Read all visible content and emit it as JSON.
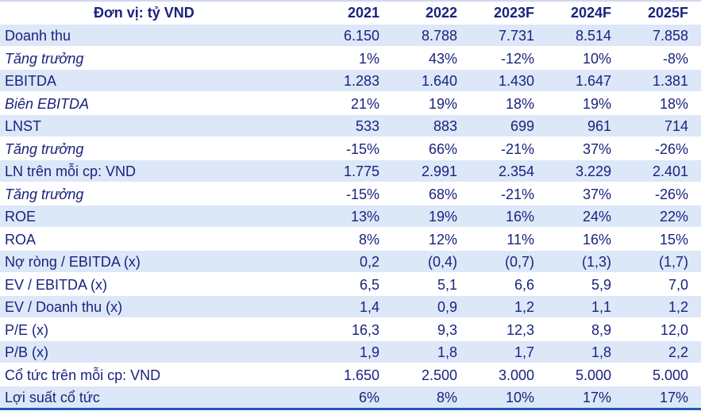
{
  "header": {
    "unit_label": "Đơn vị: tỷ VND",
    "years": [
      "2021",
      "2022",
      "2023F",
      "2024F",
      "2025F"
    ]
  },
  "rows": [
    {
      "label": "Doanh thu",
      "values": [
        "6.150",
        "8.788",
        "7.731",
        "8.514",
        "7.858"
      ]
    },
    {
      "label": "Tăng trưởng",
      "values": [
        "1%",
        "43%",
        "-12%",
        "10%",
        "-8%"
      ]
    },
    {
      "label": "EBITDA",
      "values": [
        "1.283",
        "1.640",
        "1.430",
        "1.647",
        "1.381"
      ]
    },
    {
      "label": "Biên EBITDA",
      "values": [
        "21%",
        "19%",
        "18%",
        "19%",
        "18%"
      ]
    },
    {
      "label": "LNST",
      "values": [
        "533",
        "883",
        "699",
        "961",
        "714"
      ]
    },
    {
      "label": "Tăng trưởng",
      "values": [
        "-15%",
        "66%",
        "-21%",
        "37%",
        "-26%"
      ]
    },
    {
      "label": "LN trên mỗi cp: VND",
      "values": [
        "1.775",
        "2.991",
        "2.354",
        "3.229",
        "2.401"
      ]
    },
    {
      "label": "Tăng trưởng",
      "values": [
        "-15%",
        "68%",
        "-21%",
        "37%",
        "-26%"
      ]
    },
    {
      "label": "ROE",
      "values": [
        "13%",
        "19%",
        "16%",
        "24%",
        "22%"
      ]
    },
    {
      "label": "ROA",
      "values": [
        "8%",
        "12%",
        "11%",
        "16%",
        "15%"
      ]
    },
    {
      "label": "Nợ ròng / EBITDA (x)",
      "values": [
        "0,2",
        "(0,4)",
        "(0,7)",
        "(1,3)",
        "(1,7)"
      ]
    },
    {
      "label": "EV / EBITDA (x)",
      "values": [
        "6,5",
        "5,1",
        "6,6",
        "5,9",
        "7,0"
      ]
    },
    {
      "label": "EV / Doanh thu (x)",
      "values": [
        "1,4",
        "0,9",
        "1,2",
        "1,1",
        "1,2"
      ]
    },
    {
      "label": "P/E (x)",
      "values": [
        "16,3",
        "9,3",
        "12,3",
        "8,9",
        "12,0"
      ]
    },
    {
      "label": "P/B (x)",
      "values": [
        "1,9",
        "1,8",
        "1,7",
        "1,8",
        "2,2"
      ]
    },
    {
      "label": "Cổ tức trên mỗi cp: VND",
      "values": [
        "1.650",
        "2.500",
        "3.000",
        "5.000",
        "5.000"
      ]
    },
    {
      "label": "Lợi suất cổ tức",
      "values": [
        "6%",
        "8%",
        "10%",
        "17%",
        "17%"
      ]
    }
  ],
  "colors": {
    "text": "#1a237e",
    "shade": "#dce7f8",
    "rule": "#1e5ab4"
  }
}
